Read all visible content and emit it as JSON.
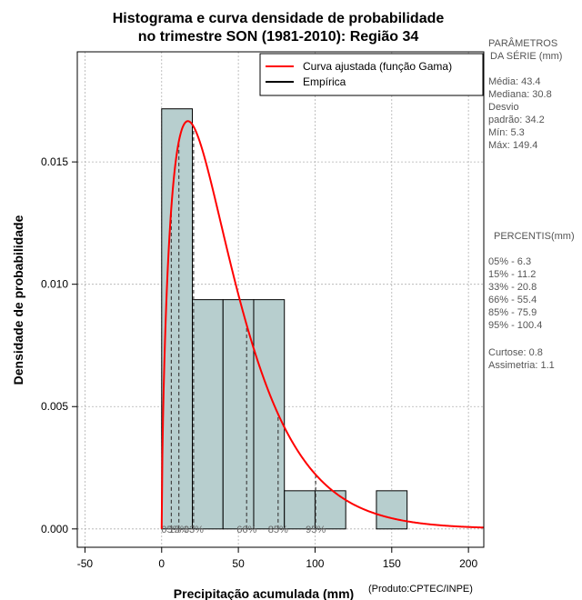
{
  "chart_data": {
    "type": "bar",
    "title_lines": [
      "Histograma e curva densidade de probabilidade",
      "no trimestre SON (1981-2010): Região 34"
    ],
    "xlabel": "Precipitação acumulada (mm)",
    "ylabel": "Densidade de probabilidade",
    "credit": "(Produto:CPTEC/INPE)",
    "xlim": [
      -55,
      210
    ],
    "ylim": [
      -0.00075,
      0.0195
    ],
    "x_ticks": [
      -50,
      0,
      50,
      100,
      150,
      200
    ],
    "x_tick_labels": [
      "-50",
      "0",
      "50",
      "100",
      "150",
      "200"
    ],
    "y_ticks": [
      0.0,
      0.005,
      0.01,
      0.015
    ],
    "y_tick_labels": [
      "0.000",
      "0.005",
      "0.010",
      "0.015"
    ],
    "bins": [
      {
        "x0": 0,
        "x1": 20,
        "density": 0.01717
      },
      {
        "x0": 20,
        "x1": 40,
        "density": 0.00937
      },
      {
        "x0": 40,
        "x1": 60,
        "density": 0.00937
      },
      {
        "x0": 60,
        "x1": 80,
        "density": 0.00937
      },
      {
        "x0": 80,
        "x1": 100,
        "density": 0.00156
      },
      {
        "x0": 100,
        "x1": 120,
        "density": 0.00156
      },
      {
        "x0": 120,
        "x1": 140,
        "density": 0.0
      },
      {
        "x0": 140,
        "x1": 160,
        "density": 0.00156
      }
    ],
    "gamma_fit": {
      "shape": 1.65,
      "scale": 26.3
    },
    "percentile_markers": [
      {
        "value": 6.3,
        "label": "05%"
      },
      {
        "value": 11.2,
        "label": "15%"
      },
      {
        "value": 20.8,
        "label": "33%"
      },
      {
        "value": 55.4,
        "label": "66%"
      },
      {
        "value": 75.9,
        "label": "85%"
      },
      {
        "value": 100.4,
        "label": "95%"
      }
    ],
    "legend": [
      {
        "label": "Curva ajustada (função Gama)",
        "color": "#ff0000"
      },
      {
        "label": "Empírica",
        "color": "#000000"
      }
    ],
    "colors": {
      "bar_fill": "#b7cece",
      "bar_stroke": "#000000",
      "grid": "#b0b0b0",
      "curve": "#ff0000",
      "percentile": "#444444"
    }
  },
  "side_panel": {
    "params_title_1": "PARÂMETROS",
    "params_title_2": "DA SÉRIE (mm)",
    "media": "Média:  43.4",
    "mediana": "Mediana:  30.8",
    "desvio_1": "Desvio",
    "desvio_2": "padrão:  34.2",
    "min": "Mín:  5.3",
    "max": "Máx:  149.4",
    "pct_title": "PERCENTIS(mm)",
    "p05": "05% -  6.3",
    "p15": "15% -  11.2",
    "p33": "33% -  20.8",
    "p66": "66% -  55.4",
    "p85": "85% -  75.9",
    "p95": "95% -  100.4",
    "curtose": "Curtose:  0.8",
    "assimetria": "Assimetria:  1.1"
  }
}
